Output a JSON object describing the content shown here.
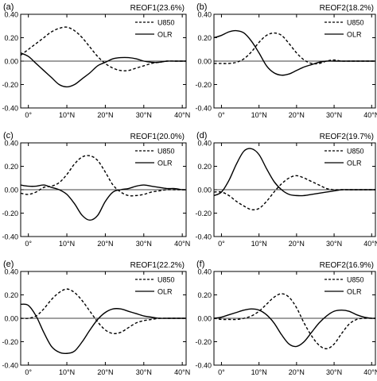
{
  "chart_data": [
    {
      "type": "line",
      "panel_label": "(a)",
      "title": "REOF1(23.6%)",
      "x_ticks": [
        0,
        10,
        20,
        30,
        40
      ],
      "x_tick_labels": [
        "0°",
        "10°N",
        "20°N",
        "30°N",
        "40°N"
      ],
      "xlim": [
        -2,
        41
      ],
      "ylim": [
        -0.4,
        0.4
      ],
      "y_ticks": [
        0.4,
        0.2,
        0.0,
        -0.2,
        -0.4
      ],
      "y_tick_labels": [
        "0.40",
        "0.20",
        "0.00",
        "-0.20",
        "-0.40"
      ],
      "zero_line": true,
      "legend_position": "top-right",
      "series": [
        {
          "name": "U850",
          "style": "dashed",
          "x": [
            -2,
            0,
            2,
            4,
            6,
            8,
            10,
            12,
            14,
            16,
            18,
            20,
            22,
            24,
            26,
            28,
            30,
            32,
            34,
            36,
            38,
            40,
            41
          ],
          "y": [
            0.05,
            0.1,
            0.15,
            0.2,
            0.25,
            0.28,
            0.29,
            0.26,
            0.2,
            0.12,
            0.04,
            -0.02,
            -0.06,
            -0.08,
            -0.08,
            -0.06,
            -0.04,
            -0.02,
            -0.01,
            0.0,
            0.0,
            0.0,
            0.0
          ]
        },
        {
          "name": "OLR",
          "style": "solid",
          "x": [
            -2,
            0,
            2,
            4,
            6,
            8,
            10,
            12,
            14,
            16,
            18,
            20,
            22,
            24,
            26,
            28,
            30,
            32,
            34,
            36,
            38,
            40,
            41
          ],
          "y": [
            0.07,
            0.04,
            -0.02,
            -0.08,
            -0.14,
            -0.2,
            -0.22,
            -0.2,
            -0.15,
            -0.1,
            -0.04,
            -0.01,
            0.02,
            0.03,
            0.03,
            0.02,
            0.0,
            -0.01,
            -0.01,
            0.0,
            0.0,
            0.0,
            0.0
          ]
        }
      ]
    },
    {
      "type": "line",
      "panel_label": "(b)",
      "title": "REOF2(18.2%)",
      "x_ticks": [
        0,
        10,
        20,
        30,
        40
      ],
      "x_tick_labels": [
        "0°",
        "10°N",
        "20°N",
        "30°N",
        "40°N"
      ],
      "xlim": [
        -2,
        41
      ],
      "ylim": [
        -0.4,
        0.4
      ],
      "y_ticks": [
        0.4,
        0.2,
        0.0,
        -0.2,
        -0.4
      ],
      "y_tick_labels": [
        "0.40",
        "0.20",
        "0.00",
        "-0.20",
        "-0.40"
      ],
      "zero_line": true,
      "legend_position": "top-right",
      "series": [
        {
          "name": "U850",
          "style": "dashed",
          "x": [
            -2,
            0,
            2,
            4,
            6,
            8,
            10,
            12,
            14,
            16,
            18,
            20,
            22,
            24,
            26,
            28,
            30,
            32,
            34,
            36,
            38,
            40,
            41
          ],
          "y": [
            -0.02,
            -0.02,
            -0.02,
            -0.01,
            0.02,
            0.08,
            0.16,
            0.22,
            0.24,
            0.22,
            0.15,
            0.07,
            0.01,
            -0.02,
            -0.02,
            0.0,
            0.01,
            0.0,
            0.0,
            0.0,
            0.0,
            0.0,
            0.0
          ]
        },
        {
          "name": "OLR",
          "style": "solid",
          "x": [
            -2,
            0,
            2,
            4,
            6,
            8,
            10,
            12,
            14,
            16,
            18,
            20,
            22,
            24,
            26,
            28,
            30,
            32,
            34,
            36,
            38,
            40,
            41
          ],
          "y": [
            0.2,
            0.22,
            0.25,
            0.26,
            0.24,
            0.17,
            0.07,
            -0.04,
            -0.1,
            -0.12,
            -0.11,
            -0.08,
            -0.05,
            -0.03,
            -0.01,
            0.0,
            0.0,
            0.0,
            0.0,
            0.0,
            0.0,
            0.0,
            0.0
          ]
        }
      ]
    },
    {
      "type": "line",
      "panel_label": "(c)",
      "title": "REOF1(20.0%)",
      "x_ticks": [
        0,
        10,
        20,
        30,
        40
      ],
      "x_tick_labels": [
        "0°",
        "10°N",
        "20°N",
        "30°N",
        "40°N"
      ],
      "xlim": [
        -2,
        41
      ],
      "ylim": [
        -0.4,
        0.4
      ],
      "y_ticks": [
        0.4,
        0.2,
        0.0,
        -0.2,
        -0.4
      ],
      "y_tick_labels": [
        "0.40",
        "0.20",
        "0.00",
        "-0.20",
        "-0.40"
      ],
      "zero_line": true,
      "legend_position": "top-right",
      "series": [
        {
          "name": "U850",
          "style": "dashed",
          "x": [
            -2,
            0,
            2,
            4,
            6,
            8,
            10,
            12,
            14,
            16,
            18,
            20,
            22,
            24,
            26,
            28,
            30,
            32,
            34,
            36,
            38,
            40,
            41
          ],
          "y": [
            -0.03,
            -0.04,
            -0.02,
            0.02,
            0.03,
            0.06,
            0.13,
            0.22,
            0.28,
            0.29,
            0.25,
            0.15,
            0.04,
            -0.02,
            -0.05,
            -0.05,
            -0.04,
            -0.02,
            -0.01,
            0.0,
            0.0,
            0.0,
            0.0
          ]
        },
        {
          "name": "OLR",
          "style": "solid",
          "x": [
            -2,
            0,
            2,
            4,
            6,
            8,
            10,
            12,
            14,
            16,
            18,
            20,
            22,
            24,
            26,
            28,
            30,
            32,
            34,
            36,
            38,
            40,
            41
          ],
          "y": [
            0.04,
            0.03,
            0.03,
            0.04,
            0.02,
            0.0,
            -0.04,
            -0.12,
            -0.22,
            -0.26,
            -0.22,
            -0.1,
            -0.02,
            0.0,
            0.01,
            0.03,
            0.04,
            0.03,
            0.02,
            0.01,
            0.01,
            0.0,
            0.0
          ]
        }
      ]
    },
    {
      "type": "line",
      "panel_label": "(d)",
      "title": "REOF2(19.7%)",
      "x_ticks": [
        0,
        10,
        20,
        30,
        40
      ],
      "x_tick_labels": [
        "0°",
        "10°N",
        "20°N",
        "30°N",
        "40°N"
      ],
      "xlim": [
        -2,
        41
      ],
      "ylim": [
        -0.4,
        0.4
      ],
      "y_ticks": [
        0.4,
        0.2,
        0.0,
        -0.2,
        -0.4
      ],
      "y_tick_labels": [
        "0.40",
        "0.20",
        "0.00",
        "-0.20",
        "-0.40"
      ],
      "zero_line": true,
      "legend_position": "top-right",
      "series": [
        {
          "name": "U850",
          "style": "dashed",
          "x": [
            -2,
            0,
            2,
            4,
            6,
            8,
            10,
            12,
            14,
            16,
            18,
            20,
            22,
            24,
            26,
            28,
            30,
            32,
            34,
            36,
            38,
            40,
            41
          ],
          "y": [
            -0.02,
            -0.02,
            -0.05,
            -0.1,
            -0.14,
            -0.17,
            -0.16,
            -0.1,
            -0.02,
            0.05,
            0.1,
            0.12,
            0.1,
            0.07,
            0.04,
            0.01,
            0.0,
            0.0,
            0.0,
            0.0,
            0.0,
            0.0,
            0.0
          ]
        },
        {
          "name": "OLR",
          "style": "solid",
          "x": [
            -2,
            0,
            2,
            4,
            6,
            8,
            10,
            12,
            14,
            16,
            18,
            20,
            22,
            24,
            26,
            28,
            30,
            32,
            34,
            36,
            38,
            40,
            41
          ],
          "y": [
            -0.05,
            -0.02,
            0.08,
            0.22,
            0.33,
            0.35,
            0.3,
            0.18,
            0.07,
            0.0,
            -0.04,
            -0.05,
            -0.05,
            -0.04,
            -0.03,
            -0.02,
            -0.01,
            0.0,
            0.0,
            0.0,
            0.0,
            0.0,
            0.0
          ]
        }
      ]
    },
    {
      "type": "line",
      "panel_label": "(e)",
      "title": "REOF1(22.2%)",
      "x_ticks": [
        0,
        10,
        20,
        30,
        40
      ],
      "x_tick_labels": [
        "0°",
        "10°N",
        "20°N",
        "30°N",
        "40°N"
      ],
      "xlim": [
        -2,
        41
      ],
      "ylim": [
        -0.4,
        0.4
      ],
      "y_ticks": [
        0.4,
        0.2,
        0.0,
        -0.2,
        -0.4
      ],
      "y_tick_labels": [
        "0.40",
        "0.20",
        "0.00",
        "-0.20",
        "-0.40"
      ],
      "zero_line": true,
      "legend_position": "top-right",
      "series": [
        {
          "name": "U850",
          "style": "dashed",
          "x": [
            -2,
            0,
            2,
            4,
            6,
            8,
            10,
            12,
            14,
            16,
            18,
            20,
            22,
            24,
            26,
            28,
            30,
            32,
            34,
            36,
            38,
            40,
            41
          ],
          "y": [
            0.0,
            0.0,
            0.02,
            0.08,
            0.16,
            0.22,
            0.25,
            0.22,
            0.15,
            0.06,
            -0.03,
            -0.1,
            -0.13,
            -0.12,
            -0.08,
            -0.04,
            -0.02,
            -0.01,
            0.0,
            0.0,
            0.0,
            0.0,
            0.0
          ]
        },
        {
          "name": "OLR",
          "style": "solid",
          "x": [
            -2,
            0,
            2,
            4,
            6,
            8,
            10,
            12,
            14,
            16,
            18,
            20,
            22,
            24,
            26,
            28,
            30,
            32,
            34,
            36,
            38,
            40,
            41
          ],
          "y": [
            0.12,
            0.11,
            0.02,
            -0.12,
            -0.24,
            -0.29,
            -0.3,
            -0.28,
            -0.2,
            -0.1,
            -0.01,
            0.05,
            0.08,
            0.08,
            0.06,
            0.04,
            0.02,
            0.01,
            0.0,
            0.0,
            0.0,
            0.0,
            0.0
          ]
        }
      ]
    },
    {
      "type": "line",
      "panel_label": "(f)",
      "title": "REOF2(16.9%)",
      "x_ticks": [
        0,
        10,
        20,
        30,
        40
      ],
      "x_tick_labels": [
        "0°",
        "10°N",
        "20°N",
        "30°N",
        "40°N"
      ],
      "xlim": [
        -2,
        41
      ],
      "ylim": [
        -0.4,
        0.4
      ],
      "y_ticks": [
        0.4,
        0.2,
        0.0,
        -0.2,
        -0.4
      ],
      "y_tick_labels": [
        "0.40",
        "0.20",
        "0.00",
        "-0.20",
        "-0.40"
      ],
      "zero_line": true,
      "legend_position": "top-right",
      "series": [
        {
          "name": "U850",
          "style": "dashed",
          "x": [
            -2,
            0,
            2,
            4,
            6,
            8,
            10,
            12,
            14,
            16,
            18,
            20,
            22,
            24,
            26,
            28,
            30,
            32,
            34,
            36,
            38,
            40,
            41
          ],
          "y": [
            0.0,
            -0.01,
            -0.01,
            -0.01,
            0.0,
            0.02,
            0.06,
            0.12,
            0.18,
            0.21,
            0.18,
            0.09,
            -0.04,
            -0.15,
            -0.23,
            -0.26,
            -0.22,
            -0.13,
            -0.05,
            -0.01,
            0.0,
            0.0,
            0.0
          ]
        },
        {
          "name": "OLR",
          "style": "solid",
          "x": [
            -2,
            0,
            2,
            4,
            6,
            8,
            10,
            12,
            14,
            16,
            18,
            20,
            22,
            24,
            26,
            28,
            30,
            32,
            34,
            36,
            38,
            40,
            41
          ],
          "y": [
            0.0,
            0.01,
            0.03,
            0.05,
            0.07,
            0.08,
            0.07,
            0.03,
            -0.04,
            -0.14,
            -0.22,
            -0.24,
            -0.2,
            -0.12,
            -0.04,
            0.02,
            0.06,
            0.07,
            0.06,
            0.03,
            0.01,
            0.0,
            0.0
          ]
        }
      ]
    }
  ]
}
